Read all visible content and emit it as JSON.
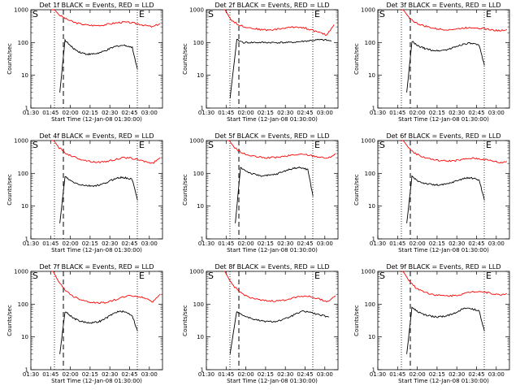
{
  "chart_data": [
    {
      "type": "line",
      "title": "Det 1f BLACK = Events, RED = LLD",
      "xlabel": "Start Time (12-Jan-08 01:30:00)",
      "ylabel": "Counts/sec",
      "x_ticks": [
        "01:30",
        "01:45",
        "02:00",
        "02:15",
        "02:30",
        "02:45",
        "03:00"
      ],
      "y_ticks": [
        "1",
        "10",
        "100",
        "1000"
      ],
      "ylim": [
        1,
        1000
      ],
      "y_scale": "log",
      "markers": {
        "left": "S",
        "right": "E"
      },
      "series": [
        {
          "color": "#ff0000",
          "start": "01:46",
          "end": "03:08",
          "values": [
            1200,
            700,
            520,
            420,
            370,
            340,
            330,
            340,
            370,
            400,
            420,
            400,
            370,
            330,
            300,
            380
          ]
        },
        {
          "color": "#000000",
          "start": "01:52",
          "end": "02:51",
          "values": [
            3,
            120,
            80,
            60,
            50,
            45,
            44,
            46,
            50,
            58,
            68,
            78,
            82,
            80,
            70,
            15
          ]
        }
      ]
    },
    {
      "type": "line",
      "title": "Det 2f BLACK = Events, RED = LLD",
      "xlabel": "Start Time (12-Jan-08 01:30:00)",
      "ylabel": "Counts/sec",
      "x_ticks": [
        "01:30",
        "01:45",
        "02:00",
        "02:15",
        "02:30",
        "02:45",
        "03:00"
      ],
      "y_ticks": [
        "1",
        "10",
        "100",
        "1000"
      ],
      "ylim": [
        1,
        1000
      ],
      "y_scale": "log",
      "markers": {
        "left": "S",
        "right": "E"
      },
      "series": [
        {
          "color": "#ff0000",
          "start": "01:43",
          "end": "03:07",
          "values": [
            1200,
            500,
            350,
            300,
            270,
            250,
            240,
            250,
            270,
            290,
            300,
            280,
            240,
            200,
            170,
            350
          ]
        },
        {
          "color": "#000000",
          "start": "01:48",
          "end": "03:05",
          "values": [
            2,
            120,
            100,
            100,
            100,
            100,
            100,
            100,
            100,
            100,
            105,
            110,
            115,
            120,
            120,
            110
          ]
        }
      ]
    },
    {
      "type": "line",
      "title": "Det 3f BLACK = Events, RED = LLD",
      "xlabel": "Start Time (12-Jan-08 01:30:00)",
      "ylabel": "Counts/sec",
      "x_ticks": [
        "01:30",
        "01:45",
        "02:00",
        "02:15",
        "02:30",
        "02:45",
        "03:00"
      ],
      "y_ticks": [
        "1",
        "10",
        "100",
        "1000"
      ],
      "ylim": [
        1,
        1000
      ],
      "y_scale": "log",
      "markers": {
        "left": "S",
        "right": "E"
      },
      "series": [
        {
          "color": "#ff0000",
          "start": "01:48",
          "end": "03:08",
          "values": [
            1200,
            600,
            400,
            330,
            290,
            260,
            250,
            250,
            260,
            280,
            290,
            280,
            260,
            240,
            230,
            250
          ]
        },
        {
          "color": "#000000",
          "start": "01:52",
          "end": "02:51",
          "values": [
            3,
            110,
            80,
            70,
            62,
            58,
            56,
            58,
            62,
            70,
            80,
            90,
            95,
            90,
            80,
            20
          ]
        }
      ]
    },
    {
      "type": "line",
      "title": "Det 4f BLACK = Events, RED = LLD",
      "xlabel": "Start Time (12-Jan-08 01:30:00)",
      "ylabel": "Counts/sec",
      "x_ticks": [
        "01:30",
        "01:45",
        "02:00",
        "02:15",
        "02:30",
        "02:45",
        "03:00"
      ],
      "y_ticks": [
        "1",
        "10",
        "100",
        "1000"
      ],
      "ylim": [
        1,
        1000
      ],
      "y_scale": "log",
      "markers": {
        "left": "S",
        "right": "E"
      },
      "series": [
        {
          "color": "#ff0000",
          "start": "01:46",
          "end": "03:08",
          "values": [
            1200,
            600,
            400,
            320,
            270,
            240,
            220,
            220,
            240,
            270,
            300,
            290,
            260,
            230,
            200,
            300
          ]
        },
        {
          "color": "#000000",
          "start": "01:52",
          "end": "02:51",
          "values": [
            3,
            80,
            60,
            50,
            45,
            42,
            41,
            42,
            45,
            52,
            62,
            72,
            75,
            72,
            65,
            15
          ]
        }
      ]
    },
    {
      "type": "line",
      "title": "Det 5f BLACK = Events, RED = LLD",
      "xlabel": "Start Time (12-Jan-08 01:30:00)",
      "ylabel": "Counts/sec",
      "x_ticks": [
        "01:30",
        "01:45",
        "02:00",
        "02:15",
        "02:30",
        "02:45",
        "03:00"
      ],
      "y_ticks": [
        "1",
        "10",
        "100",
        "1000"
      ],
      "ylim": [
        1,
        1000
      ],
      "y_scale": "log",
      "markers": {
        "left": "S",
        "right": "E"
      },
      "series": [
        {
          "color": "#ff0000",
          "start": "01:46",
          "end": "03:08",
          "values": [
            1200,
            600,
            420,
            350,
            320,
            300,
            300,
            310,
            330,
            360,
            380,
            370,
            340,
            310,
            290,
            400
          ]
        },
        {
          "color": "#000000",
          "start": "01:52",
          "end": "02:51",
          "values": [
            3,
            150,
            120,
            100,
            90,
            85,
            85,
            88,
            95,
            110,
            125,
            140,
            150,
            145,
            130,
            20
          ]
        }
      ]
    },
    {
      "type": "line",
      "title": "Det 6f BLACK = Events, RED = LLD",
      "xlabel": "Start Time (12-Jan-08 01:30:00)",
      "ylabel": "Counts/sec",
      "x_ticks": [
        "01:30",
        "01:45",
        "02:00",
        "02:15",
        "02:30",
        "02:45",
        "03:00"
      ],
      "y_ticks": [
        "1",
        "10",
        "100",
        "1000"
      ],
      "ylim": [
        1,
        1000
      ],
      "y_scale": "log",
      "markers": {
        "left": "S",
        "right": "E"
      },
      "series": [
        {
          "color": "#ff0000",
          "start": "01:48",
          "end": "03:08",
          "values": [
            1200,
            600,
            400,
            320,
            280,
            250,
            240,
            240,
            250,
            270,
            290,
            280,
            260,
            240,
            210,
            230
          ]
        },
        {
          "color": "#000000",
          "start": "01:52",
          "end": "02:51",
          "values": [
            3,
            80,
            60,
            52,
            48,
            45,
            44,
            45,
            48,
            55,
            62,
            70,
            72,
            70,
            62,
            15
          ]
        }
      ]
    },
    {
      "type": "line",
      "title": "Det 7f BLACK = Events, RED = LLD",
      "xlabel": "Start Time (12-Jan-08 01:30:00)",
      "ylabel": "Counts/sec",
      "x_ticks": [
        "01:30",
        "01:45",
        "02:00",
        "02:15",
        "02:30",
        "02:45",
        "03:00"
      ],
      "y_ticks": [
        "1",
        "10",
        "100",
        "1000"
      ],
      "ylim": [
        1,
        1000
      ],
      "y_scale": "log",
      "markers": {
        "left": "S",
        "right": "E"
      },
      "series": [
        {
          "color": "#ff0000",
          "start": "01:46",
          "end": "03:08",
          "values": [
            1200,
            450,
            250,
            170,
            140,
            120,
            110,
            110,
            120,
            140,
            170,
            180,
            170,
            150,
            120,
            200
          ]
        },
        {
          "color": "#000000",
          "start": "01:52",
          "end": "02:51",
          "values": [
            3,
            60,
            45,
            35,
            30,
            28,
            27,
            28,
            31,
            38,
            48,
            58,
            60,
            55,
            45,
            15
          ]
        }
      ]
    },
    {
      "type": "line",
      "title": "Det 8f BLACK = Events, RED = LLD",
      "xlabel": "Start Time (12-Jan-08 01:30:00)",
      "ylabel": "Counts/sec",
      "x_ticks": [
        "01:30",
        "01:45",
        "02:00",
        "02:15",
        "02:30",
        "02:45",
        "03:00"
      ],
      "y_ticks": [
        "1",
        "10",
        "100",
        "1000"
      ],
      "ylim": [
        1,
        1000
      ],
      "y_scale": "log",
      "markers": {
        "left": "S",
        "right": "E"
      },
      "series": [
        {
          "color": "#ff0000",
          "start": "01:43",
          "end": "03:08",
          "values": [
            1200,
            450,
            250,
            180,
            150,
            130,
            125,
            125,
            130,
            150,
            170,
            180,
            160,
            140,
            120,
            180
          ]
        },
        {
          "color": "#000000",
          "start": "01:48",
          "end": "03:03",
          "values": [
            3,
            60,
            45,
            38,
            33,
            30,
            29,
            30,
            33,
            40,
            50,
            60,
            58,
            50,
            45,
            40
          ]
        }
      ]
    },
    {
      "type": "line",
      "title": "Det 9f BLACK = Events, RED = LLD",
      "xlabel": "Start Time (12-Jan-08 01:30:00)",
      "ylabel": "Counts/sec",
      "x_ticks": [
        "01:30",
        "01:45",
        "02:00",
        "02:15",
        "02:30",
        "02:45",
        "03:00"
      ],
      "y_ticks": [
        "1",
        "10",
        "100",
        "1000"
      ],
      "ylim": [
        1,
        1000
      ],
      "y_scale": "log",
      "markers": {
        "left": "S",
        "right": "E"
      },
      "series": [
        {
          "color": "#ff0000",
          "start": "01:48",
          "end": "03:08",
          "values": [
            1200,
            550,
            320,
            250,
            210,
            190,
            180,
            180,
            190,
            210,
            240,
            250,
            230,
            210,
            190,
            210
          ]
        },
        {
          "color": "#000000",
          "start": "01:52",
          "end": "02:51",
          "values": [
            3,
            80,
            60,
            50,
            45,
            42,
            41,
            42,
            45,
            52,
            62,
            72,
            75,
            70,
            60,
            15
          ]
        }
      ]
    }
  ]
}
